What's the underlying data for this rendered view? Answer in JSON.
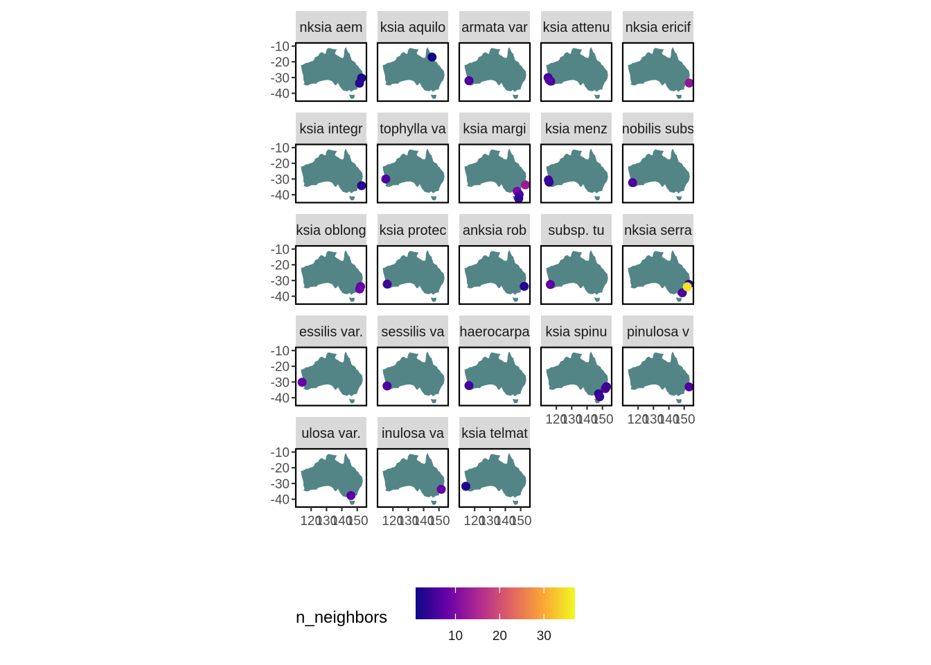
{
  "chart_data": {
    "type": "scatter",
    "subtype": "faceted-map",
    "map_region": "Australia",
    "land_color": "#538586",
    "strip_color": "#d9d9d9",
    "xlim": [
      110,
      156
    ],
    "ylim": [
      -45,
      -8
    ],
    "y_ticks": [
      -10,
      -20,
      -30,
      -40
    ],
    "y_tick_labels": [
      "-10",
      "-20",
      "-30",
      "-40"
    ],
    "x_ticks": [
      120,
      130,
      140,
      150
    ],
    "x_tick_labels": [
      "120",
      "130",
      "140",
      "150"
    ],
    "color_scale": {
      "name": "plasma",
      "title": "n_neighbors",
      "min": 1,
      "max": 37,
      "breaks": [
        10,
        20,
        30
      ],
      "break_labels": [
        "10",
        "20",
        "30"
      ],
      "stops": [
        "#0d0887",
        "#6a00a8",
        "#b12a90",
        "#e16462",
        "#fca636",
        "#f0f921"
      ]
    },
    "panels": [
      {
        "label": "nksia aem",
        "points": [
          {
            "x": 152.8,
            "y": -30.3,
            "n": 2
          },
          {
            "x": 151.5,
            "y": -33.6,
            "n": 3
          }
        ]
      },
      {
        "label": "ksia aquilo",
        "points": [
          {
            "x": 145.5,
            "y": -17.0,
            "n": 1
          }
        ]
      },
      {
        "label": "armata var",
        "points": [
          {
            "x": 116.3,
            "y": -32.0,
            "n": 6
          }
        ]
      },
      {
        "label": "ksia attenu",
        "points": [
          {
            "x": 114.6,
            "y": -30.0,
            "n": 5
          },
          {
            "x": 115.3,
            "y": -31.6,
            "n": 7
          },
          {
            "x": 116.3,
            "y": -32.3,
            "n": 6
          }
        ]
      },
      {
        "label": "nksia ericif",
        "points": [
          {
            "x": 153.3,
            "y": -33.5,
            "n": 12
          }
        ]
      },
      {
        "label": "ksia integr",
        "points": [
          {
            "x": 152.8,
            "y": -34.2,
            "n": 3
          }
        ]
      },
      {
        "label": "tophylla va",
        "points": [
          {
            "x": 115.4,
            "y": -30.0,
            "n": 6
          }
        ]
      },
      {
        "label": "ksia margi",
        "points": [
          {
            "x": 147.7,
            "y": -37.8,
            "n": 10
          },
          {
            "x": 149.0,
            "y": -39.8,
            "n": 7
          },
          {
            "x": 148.7,
            "y": -42.4,
            "n": 4
          },
          {
            "x": 153.0,
            "y": -33.7,
            "n": 13
          }
        ]
      },
      {
        "label": "ksia menz",
        "points": [
          {
            "x": 114.8,
            "y": -30.6,
            "n": 5
          },
          {
            "x": 115.3,
            "y": -32.0,
            "n": 4
          }
        ]
      },
      {
        "label": "nobilis subs",
        "points": [
          {
            "x": 116.4,
            "y": -32.3,
            "n": 6
          }
        ]
      },
      {
        "label": "ksia oblong",
        "points": [
          {
            "x": 151.6,
            "y": -35.4,
            "n": 9
          },
          {
            "x": 152.2,
            "y": -33.8,
            "n": 8
          }
        ]
      },
      {
        "label": "ksia protec",
        "points": [
          {
            "x": 116.3,
            "y": -32.3,
            "n": 5
          }
        ]
      },
      {
        "label": "anksia rob",
        "points": [
          {
            "x": 152.3,
            "y": -33.7,
            "n": 3
          }
        ]
      },
      {
        "label": "subsp. tu",
        "points": [
          {
            "x": 116.1,
            "y": -32.5,
            "n": 7
          }
        ]
      },
      {
        "label": "nksia serra",
        "points": [
          {
            "x": 148.8,
            "y": -37.8,
            "n": 6
          },
          {
            "x": 153.0,
            "y": -32.4,
            "n": 3
          },
          {
            "x": 152.0,
            "y": -34.0,
            "n": 35
          }
        ]
      },
      {
        "label": "essilis var.",
        "points": [
          {
            "x": 114.1,
            "y": -30.2,
            "n": 8
          }
        ]
      },
      {
        "label": "sessilis va",
        "points": [
          {
            "x": 116.2,
            "y": -32.5,
            "n": 6
          }
        ]
      },
      {
        "label": "haerocarpa",
        "points": [
          {
            "x": 116.3,
            "y": -32.3,
            "n": 5
          }
        ]
      },
      {
        "label": "ksia spinu",
        "points": [
          {
            "x": 147.5,
            "y": -37.5,
            "n": 3
          },
          {
            "x": 148.2,
            "y": -39.4,
            "n": 4
          },
          {
            "x": 151.9,
            "y": -34.2,
            "n": 6
          },
          {
            "x": 152.6,
            "y": -33.0,
            "n": 5
          }
        ]
      },
      {
        "label": "pinulosa v",
        "points": [
          {
            "x": 153.2,
            "y": -33.1,
            "n": 6
          }
        ]
      },
      {
        "label": "ulosa var.",
        "points": [
          {
            "x": 145.9,
            "y": -37.7,
            "n": 7
          }
        ]
      },
      {
        "label": "inulosa va",
        "points": [
          {
            "x": 151.5,
            "y": -33.7,
            "n": 8
          }
        ]
      },
      {
        "label": "ksia telmat",
        "points": [
          {
            "x": 114.3,
            "y": -31.8,
            "n": 2
          }
        ]
      }
    ]
  }
}
